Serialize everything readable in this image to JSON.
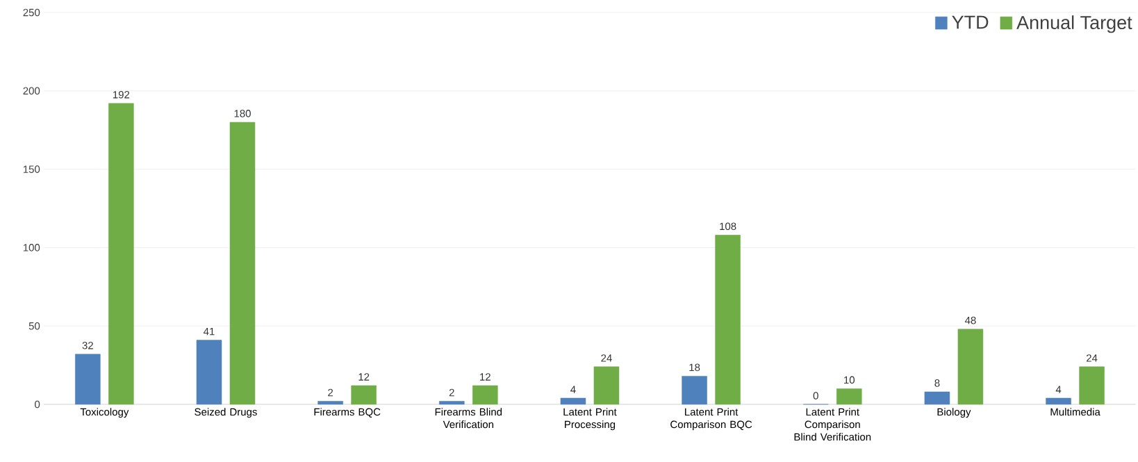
{
  "chart_data": {
    "type": "bar",
    "categories": [
      "Toxicology",
      "Seized Drugs",
      "Firearms BQC",
      "Firearms Blind Verification",
      "Latent Print Processing",
      "Latent Print Comparison BQC",
      "Latent Print Comparison Blind Verification",
      "Biology",
      "Multimedia"
    ],
    "series": [
      {
        "name": "YTD",
        "color": "#4f81bd",
        "values": [
          32,
          41,
          2,
          2,
          4,
          18,
          0,
          8,
          4
        ]
      },
      {
        "name": "Annual Target",
        "color": "#70ad47",
        "values": [
          192,
          180,
          12,
          12,
          24,
          108,
          10,
          48,
          24
        ]
      }
    ],
    "ylim": [
      0,
      250
    ],
    "yticks": [
      0,
      50,
      100,
      150,
      200,
      250
    ],
    "grid": "y",
    "legend": "top right",
    "data_labels": true
  }
}
